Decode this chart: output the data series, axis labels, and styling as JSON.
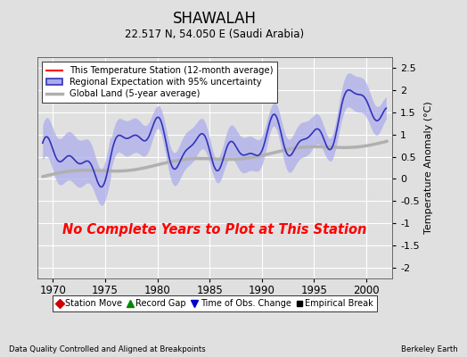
{
  "title": "SHAWALAH",
  "subtitle": "22.517 N, 54.050 E (Saudi Arabia)",
  "xlabel_left": "Data Quality Controlled and Aligned at Breakpoints",
  "xlabel_right": "Berkeley Earth",
  "ylabel": "Temperature Anomaly (°C)",
  "no_data_text": "No Complete Years to Plot at This Station",
  "xlim": [
    1968.5,
    2002.5
  ],
  "ylim": [
    -2.25,
    2.75
  ],
  "yticks": [
    -2,
    -1.5,
    -1,
    -0.5,
    0,
    0.5,
    1,
    1.5,
    2,
    2.5
  ],
  "xticks": [
    1970,
    1975,
    1980,
    1985,
    1990,
    1995,
    2000
  ],
  "background_color": "#e0e0e0",
  "plot_bg_color": "#e0e0e0",
  "regional_line_color": "#3333bb",
  "regional_band_color": "#aaaaee",
  "regional_band_alpha": 0.7,
  "global_land_color": "#b0b0b0",
  "station_color": "#ff0000",
  "grid_color": "#ffffff",
  "legend_labels": [
    "This Temperature Station (12-month average)",
    "Regional Expectation with 95% uncertainty",
    "Global Land (5-year average)"
  ],
  "bottom_legend": [
    {
      "label": "Station Move",
      "color": "#cc0000",
      "marker": "D",
      "ms": 5
    },
    {
      "label": "Record Gap",
      "color": "#008800",
      "marker": "^",
      "ms": 6
    },
    {
      "label": "Time of Obs. Change",
      "color": "#0000cc",
      "marker": "v",
      "ms": 6
    },
    {
      "label": "Empirical Break",
      "color": "#000000",
      "marker": "s",
      "ms": 5
    }
  ],
  "regional_data_seed": 17,
  "n_years": 33,
  "start_year": 1969
}
